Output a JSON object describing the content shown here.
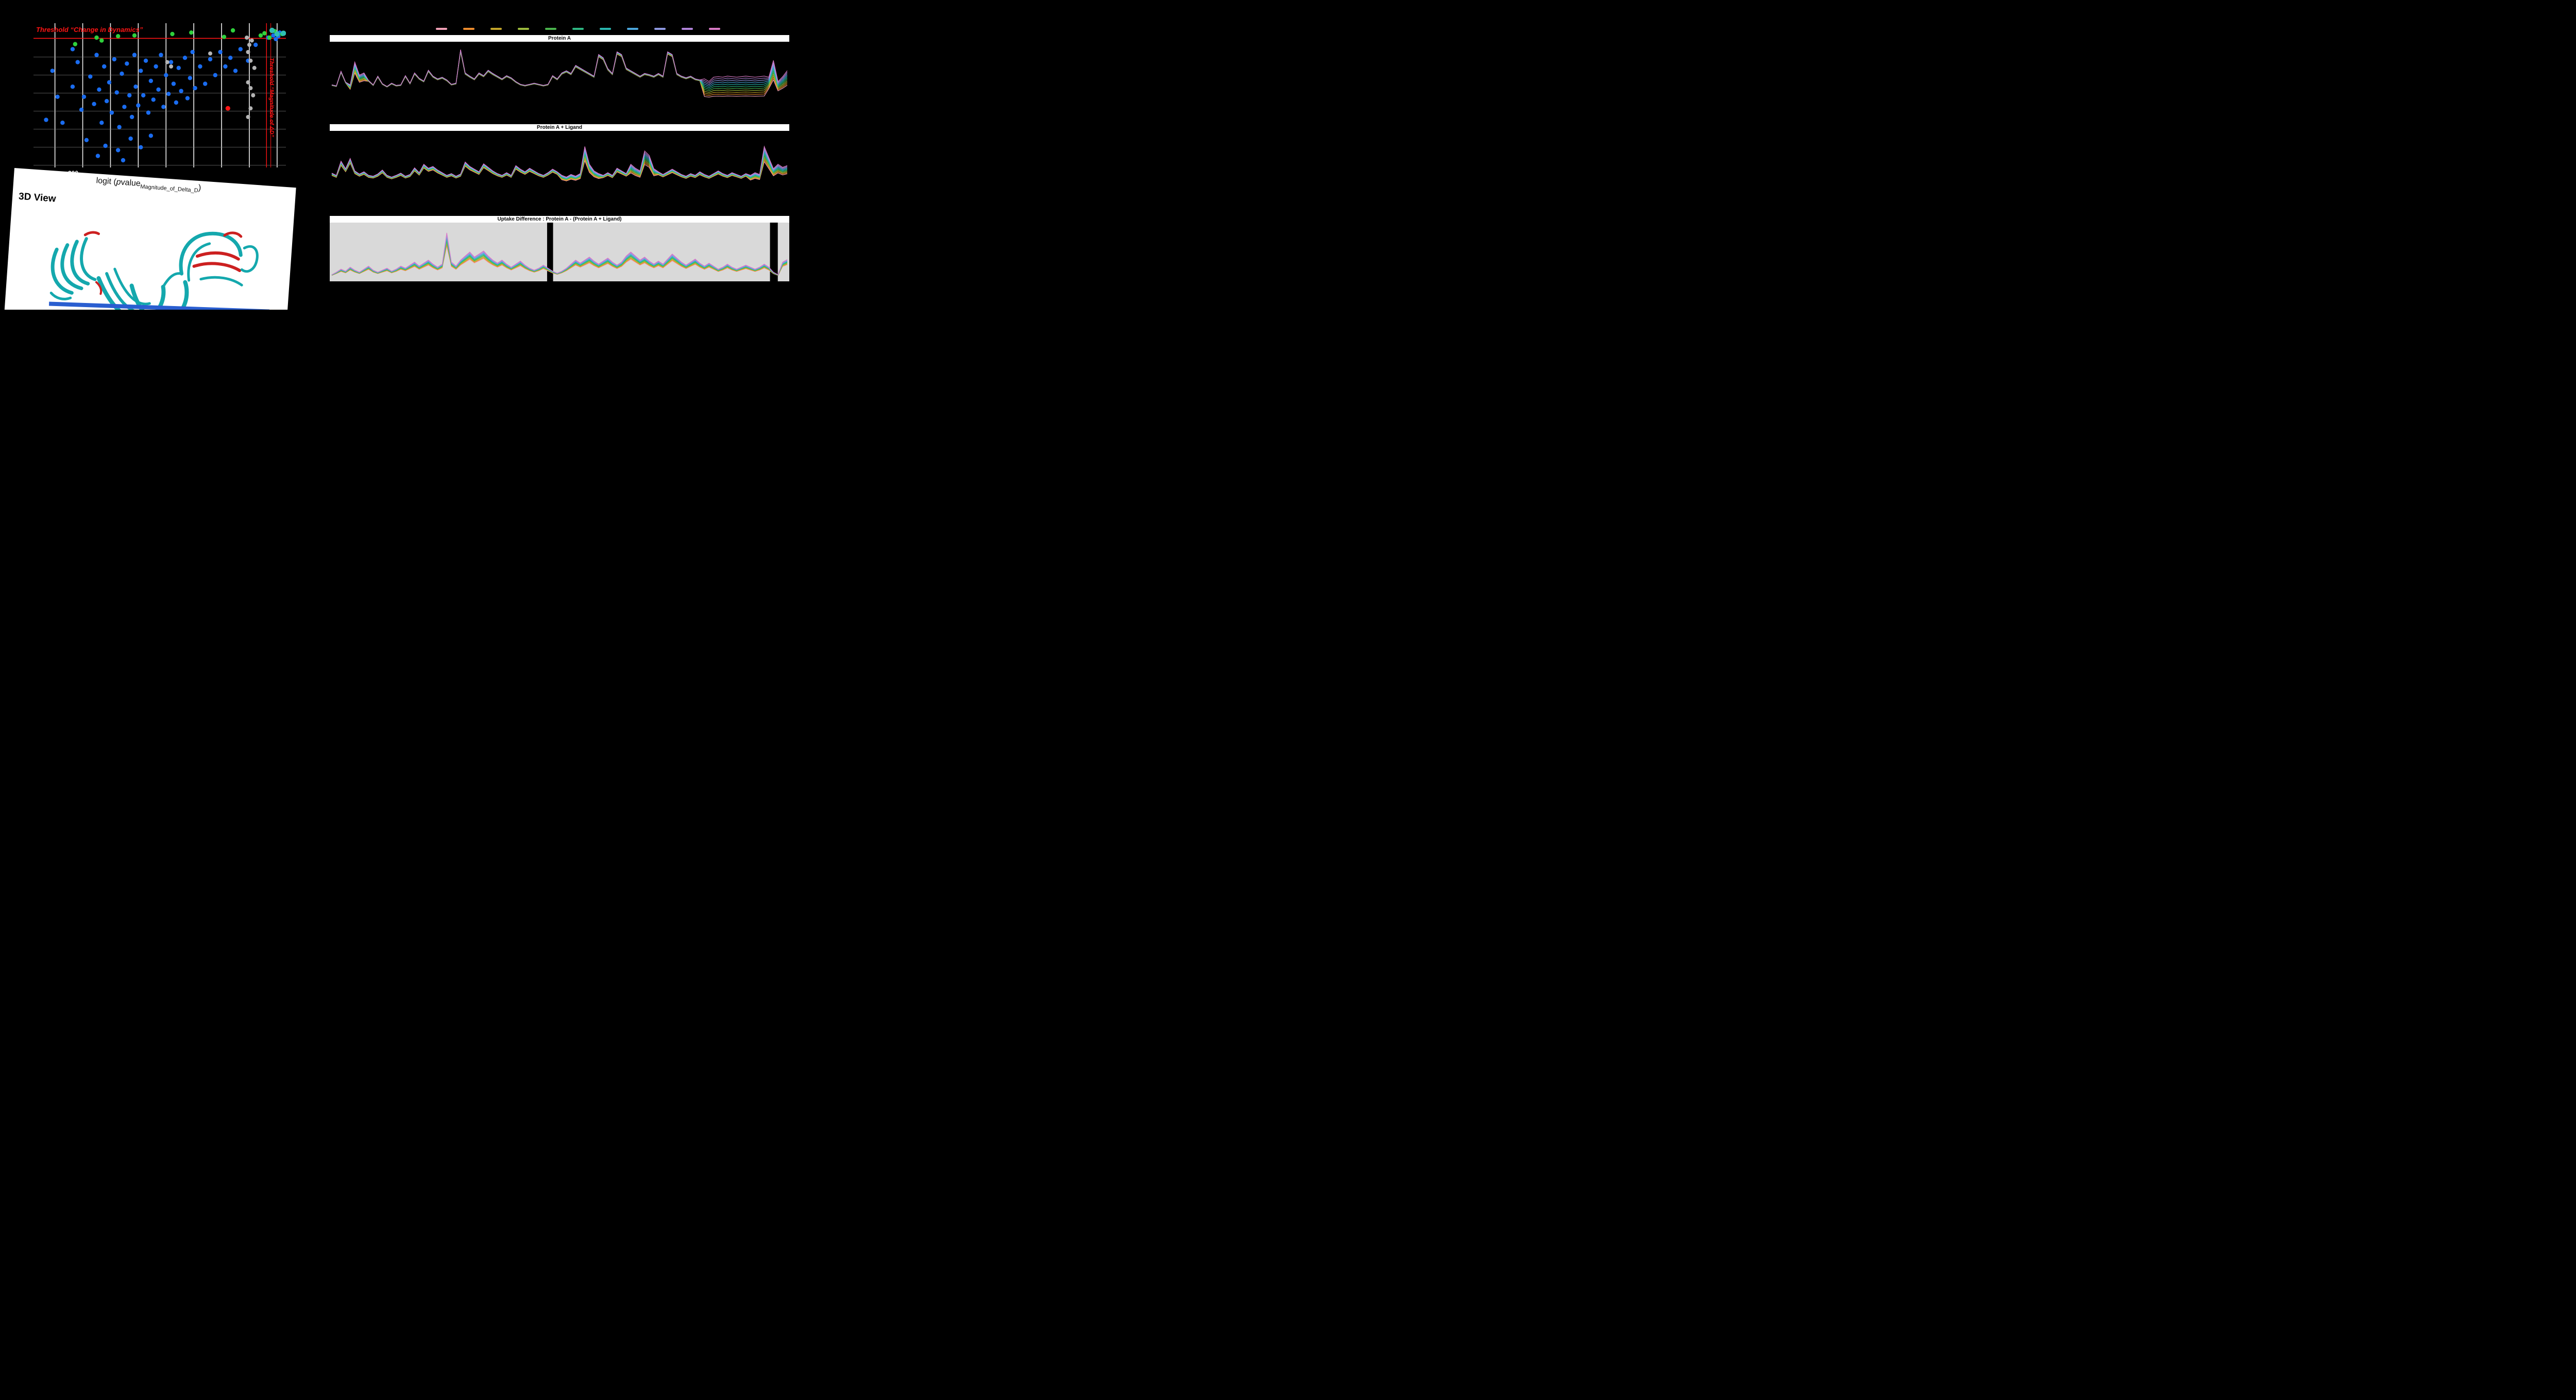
{
  "view3d": {
    "title": "3D View",
    "ribbon_colors": {
      "main": "#14a8ad",
      "highlight": "#cc2020"
    }
  },
  "legend": {
    "colors": [
      "#f2a0b6",
      "#ee8d2d",
      "#c4a62a",
      "#9dbb3c",
      "#4ab54d",
      "#2eb883",
      "#2ab8b0",
      "#4ba7dd",
      "#8f99e2",
      "#b183da",
      "#d97ac6"
    ]
  },
  "chart_data": [
    {
      "type": "scatter",
      "name": "volcano-plot",
      "threshold_h_label": "Threshold “Change in Dynamics”",
      "threshold_v_label": "Threshold “Magnitude of ΔD”",
      "axis_label": {
        "prefix": "logit (",
        "p": "p",
        "value": "value",
        "sub": "Magnitude_of_Delta_D",
        "suffix": ")"
      },
      "x_tick": "-200",
      "colors": {
        "blue": "#1a6cf0",
        "green": "#2fd13c",
        "gray": "#b4b4b4",
        "red": "#ff1414",
        "teal": "#2fbfb3"
      },
      "radius": {
        "blue": 4.2,
        "green": 4.2,
        "gray": 4.0,
        "red": 4.6,
        "teal": 5.2
      },
      "thresholds": {
        "h_y_frac": 0.105,
        "v_x_frac": 0.923,
        "v_x2_frac": 0.94
      },
      "points": {
        "blue": [
          [
            0.05,
            0.67
          ],
          [
            0.075,
            0.33
          ],
          [
            0.095,
            0.51
          ],
          [
            0.115,
            0.69
          ],
          [
            0.155,
            0.44
          ],
          [
            0.175,
            0.27
          ],
          [
            0.19,
            0.6
          ],
          [
            0.2,
            0.51
          ],
          [
            0.21,
            0.81
          ],
          [
            0.225,
            0.37
          ],
          [
            0.24,
            0.56
          ],
          [
            0.25,
            0.22
          ],
          [
            0.26,
            0.46
          ],
          [
            0.27,
            0.69
          ],
          [
            0.28,
            0.3
          ],
          [
            0.29,
            0.54
          ],
          [
            0.3,
            0.41
          ],
          [
            0.31,
            0.62
          ],
          [
            0.32,
            0.25
          ],
          [
            0.33,
            0.48
          ],
          [
            0.34,
            0.72
          ],
          [
            0.35,
            0.35
          ],
          [
            0.36,
            0.58
          ],
          [
            0.37,
            0.28
          ],
          [
            0.38,
            0.5
          ],
          [
            0.39,
            0.65
          ],
          [
            0.4,
            0.22
          ],
          [
            0.405,
            0.44
          ],
          [
            0.415,
            0.57
          ],
          [
            0.425,
            0.33
          ],
          [
            0.435,
            0.5
          ],
          [
            0.445,
            0.26
          ],
          [
            0.455,
            0.62
          ],
          [
            0.465,
            0.4
          ],
          [
            0.475,
            0.53
          ],
          [
            0.485,
            0.3
          ],
          [
            0.495,
            0.46
          ],
          [
            0.505,
            0.22
          ],
          [
            0.515,
            0.58
          ],
          [
            0.525,
            0.36
          ],
          [
            0.535,
            0.49
          ],
          [
            0.545,
            0.27
          ],
          [
            0.555,
            0.42
          ],
          [
            0.565,
            0.55
          ],
          [
            0.575,
            0.31
          ],
          [
            0.585,
            0.47
          ],
          [
            0.6,
            0.24
          ],
          [
            0.61,
            0.52
          ],
          [
            0.62,
            0.38
          ],
          [
            0.63,
            0.2
          ],
          [
            0.64,
            0.45
          ],
          [
            0.66,
            0.3
          ],
          [
            0.68,
            0.42
          ],
          [
            0.7,
            0.25
          ],
          [
            0.72,
            0.36
          ],
          [
            0.74,
            0.2
          ],
          [
            0.76,
            0.3
          ],
          [
            0.78,
            0.24
          ],
          [
            0.8,
            0.33
          ],
          [
            0.82,
            0.18
          ],
          [
            0.85,
            0.26
          ],
          [
            0.88,
            0.15
          ],
          [
            0.255,
            0.92
          ],
          [
            0.285,
            0.85
          ],
          [
            0.335,
            0.88
          ],
          [
            0.385,
            0.8
          ],
          [
            0.425,
            0.86
          ],
          [
            0.465,
            0.78
          ],
          [
            0.355,
            0.95
          ],
          [
            0.155,
            0.18
          ],
          [
            0.95,
            0.085
          ],
          [
            0.97,
            0.09
          ],
          [
            0.975,
            0.065
          ],
          [
            0.96,
            0.11
          ],
          [
            0.93,
            0.1
          ]
        ],
        "green": [
          [
            0.165,
            0.145
          ],
          [
            0.25,
            0.1
          ],
          [
            0.27,
            0.12
          ],
          [
            0.335,
            0.09
          ],
          [
            0.4,
            0.085
          ],
          [
            0.55,
            0.075
          ],
          [
            0.625,
            0.065
          ],
          [
            0.755,
            0.095
          ],
          [
            0.79,
            0.05
          ],
          [
            0.915,
            0.07
          ],
          [
            0.935,
            0.1
          ],
          [
            0.955,
            0.055
          ],
          [
            0.9,
            0.085
          ],
          [
            0.985,
            0.075
          ]
        ],
        "gray": [
          [
            0.7,
            0.21
          ],
          [
            0.53,
            0.27
          ],
          [
            0.545,
            0.3
          ],
          [
            0.845,
            0.1
          ],
          [
            0.855,
            0.15
          ],
          [
            0.85,
            0.2
          ],
          [
            0.86,
            0.26
          ],
          [
            0.875,
            0.31
          ],
          [
            0.85,
            0.41
          ],
          [
            0.86,
            0.45
          ],
          [
            0.87,
            0.5
          ],
          [
            0.86,
            0.59
          ],
          [
            0.85,
            0.65
          ],
          [
            0.865,
            0.12
          ]
        ],
        "red": [
          [
            0.77,
            0.59
          ]
        ],
        "teal": [
          [
            0.99,
            0.07
          ],
          [
            0.945,
            0.05
          ],
          [
            0.965,
            0.075
          ]
        ]
      }
    },
    {
      "type": "line",
      "title": "Protein A",
      "spread": 0.8,
      "fan_regions": [
        {
          "from": 0.0,
          "to": 0.04,
          "v": 0.06
        },
        {
          "from": 0.04,
          "to": 0.08,
          "v": 0.35
        },
        {
          "from": 0.08,
          "to": 0.82,
          "v": 0.06
        },
        {
          "from": 0.82,
          "to": 0.96,
          "v": 1.0
        },
        {
          "from": 0.96,
          "to": 1.0,
          "v": 0.6
        }
      ],
      "base": [
        0.3,
        0.28,
        0.55,
        0.35,
        0.3,
        0.72,
        0.48,
        0.52,
        0.38,
        0.3,
        0.46,
        0.32,
        0.27,
        0.33,
        0.29,
        0.3,
        0.47,
        0.33,
        0.52,
        0.42,
        0.37,
        0.57,
        0.46,
        0.41,
        0.44,
        0.39,
        0.31,
        0.33,
        0.95,
        0.52,
        0.46,
        0.41,
        0.52,
        0.47,
        0.57,
        0.51,
        0.46,
        0.41,
        0.47,
        0.43,
        0.36,
        0.31,
        0.29,
        0.31,
        0.33,
        0.31,
        0.29,
        0.31,
        0.47,
        0.41,
        0.52,
        0.56,
        0.51,
        0.66,
        0.61,
        0.56,
        0.51,
        0.46,
        0.86,
        0.8,
        0.6,
        0.51,
        0.91,
        0.86,
        0.61,
        0.56,
        0.51,
        0.46,
        0.51,
        0.49,
        0.46,
        0.51,
        0.46,
        0.91,
        0.86,
        0.51,
        0.46,
        0.43,
        0.46,
        0.41,
        0.39,
        0.41,
        0.36,
        0.44,
        0.45,
        0.44,
        0.46,
        0.45,
        0.44,
        0.45,
        0.46,
        0.45,
        0.44,
        0.45,
        0.46,
        0.44,
        0.75,
        0.36,
        0.45,
        0.56
      ]
    },
    {
      "type": "line",
      "title": "Protein A + Ligand",
      "spread": 0.45,
      "fan_regions": [
        {
          "from": 0.0,
          "to": 0.5,
          "v": 0.35
        },
        {
          "from": 0.5,
          "to": 0.6,
          "v": 0.75
        },
        {
          "from": 0.6,
          "to": 0.66,
          "v": 0.4
        },
        {
          "from": 0.66,
          "to": 0.72,
          "v": 0.8
        },
        {
          "from": 0.72,
          "to": 0.92,
          "v": 0.4
        },
        {
          "from": 0.92,
          "to": 1.0,
          "v": 0.8
        }
      ],
      "base": [
        0.35,
        0.3,
        0.62,
        0.45,
        0.68,
        0.4,
        0.33,
        0.38,
        0.3,
        0.28,
        0.33,
        0.42,
        0.3,
        0.26,
        0.3,
        0.35,
        0.28,
        0.32,
        0.47,
        0.36,
        0.55,
        0.46,
        0.5,
        0.42,
        0.36,
        0.3,
        0.34,
        0.28,
        0.33,
        0.6,
        0.5,
        0.44,
        0.38,
        0.56,
        0.48,
        0.4,
        0.34,
        0.3,
        0.36,
        0.3,
        0.52,
        0.44,
        0.38,
        0.46,
        0.4,
        0.34,
        0.3,
        0.36,
        0.44,
        0.38,
        0.3,
        0.26,
        0.32,
        0.28,
        0.34,
        0.95,
        0.55,
        0.4,
        0.34,
        0.3,
        0.36,
        0.3,
        0.46,
        0.4,
        0.34,
        0.55,
        0.46,
        0.4,
        0.85,
        0.75,
        0.45,
        0.38,
        0.32,
        0.38,
        0.44,
        0.38,
        0.32,
        0.28,
        0.34,
        0.3,
        0.38,
        0.32,
        0.28,
        0.34,
        0.4,
        0.34,
        0.3,
        0.36,
        0.32,
        0.28,
        0.34,
        0.3,
        0.36,
        0.32,
        0.95,
        0.7,
        0.45,
        0.55,
        0.48,
        0.52
      ]
    },
    {
      "type": "line",
      "title": "Uptake Difference : Protein A - (Protein A + Ligand)",
      "spread": 0.6,
      "gray_color": "#d9d9d9",
      "gray_blocks": [
        [
          0.0,
          0.473
        ],
        [
          0.486,
          0.958
        ],
        [
          0.975,
          1.0
        ]
      ],
      "fan_regions": [
        {
          "from": 0.0,
          "to": 1.0,
          "v": 0.5
        }
      ],
      "base": [
        0.05,
        0.1,
        0.16,
        0.12,
        0.2,
        0.14,
        0.1,
        0.16,
        0.22,
        0.14,
        0.1,
        0.14,
        0.18,
        0.12,
        0.16,
        0.22,
        0.18,
        0.24,
        0.3,
        0.22,
        0.28,
        0.34,
        0.26,
        0.2,
        0.26,
        0.88,
        0.3,
        0.22,
        0.34,
        0.42,
        0.5,
        0.4,
        0.46,
        0.52,
        0.42,
        0.34,
        0.28,
        0.34,
        0.26,
        0.2,
        0.26,
        0.32,
        0.24,
        0.18,
        0.14,
        0.18,
        0.24,
        0.18,
        0.12,
        0.08,
        0.12,
        0.18,
        0.26,
        0.34,
        0.28,
        0.34,
        0.4,
        0.32,
        0.26,
        0.32,
        0.38,
        0.3,
        0.24,
        0.3,
        0.42,
        0.5,
        0.42,
        0.34,
        0.4,
        0.32,
        0.26,
        0.32,
        0.26,
        0.36,
        0.46,
        0.38,
        0.3,
        0.24,
        0.3,
        0.36,
        0.28,
        0.22,
        0.28,
        0.22,
        0.16,
        0.2,
        0.26,
        0.2,
        0.16,
        0.2,
        0.24,
        0.2,
        0.16,
        0.2,
        0.26,
        0.2,
        0.1,
        0.05,
        0.3,
        0.35
      ]
    }
  ]
}
